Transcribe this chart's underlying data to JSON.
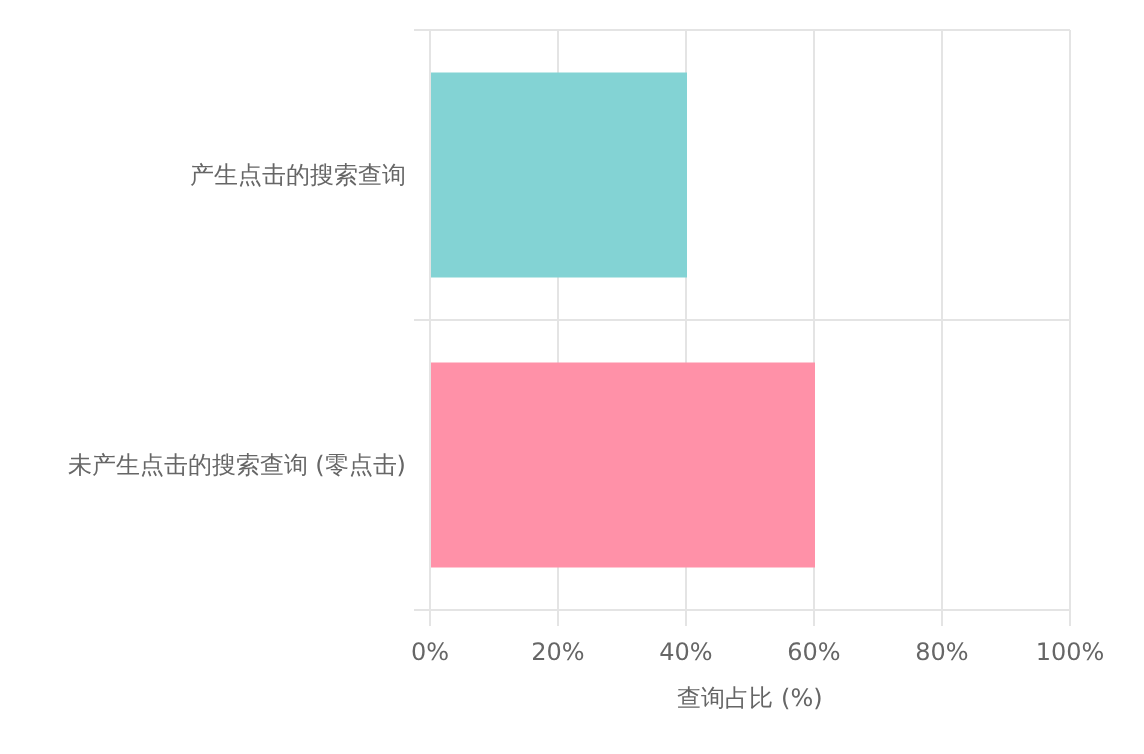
{
  "chart_data": {
    "type": "bar",
    "orientation": "horizontal",
    "categories": [
      "产生点击的搜索查询",
      "未产生点击的搜索查询 (零点击)"
    ],
    "values": [
      40,
      60
    ],
    "colors": [
      "#83d3d4",
      "#ff91a8"
    ],
    "xlabel": "查询占比 (%)",
    "xlim": [
      0,
      100
    ],
    "xticks": [
      {
        "value": 0,
        "label": "0%"
      },
      {
        "value": 20,
        "label": "20%"
      },
      {
        "value": 40,
        "label": "40%"
      },
      {
        "value": 60,
        "label": "60%"
      },
      {
        "value": 80,
        "label": "80%"
      },
      {
        "value": 100,
        "label": "100%"
      }
    ],
    "grid": true
  }
}
